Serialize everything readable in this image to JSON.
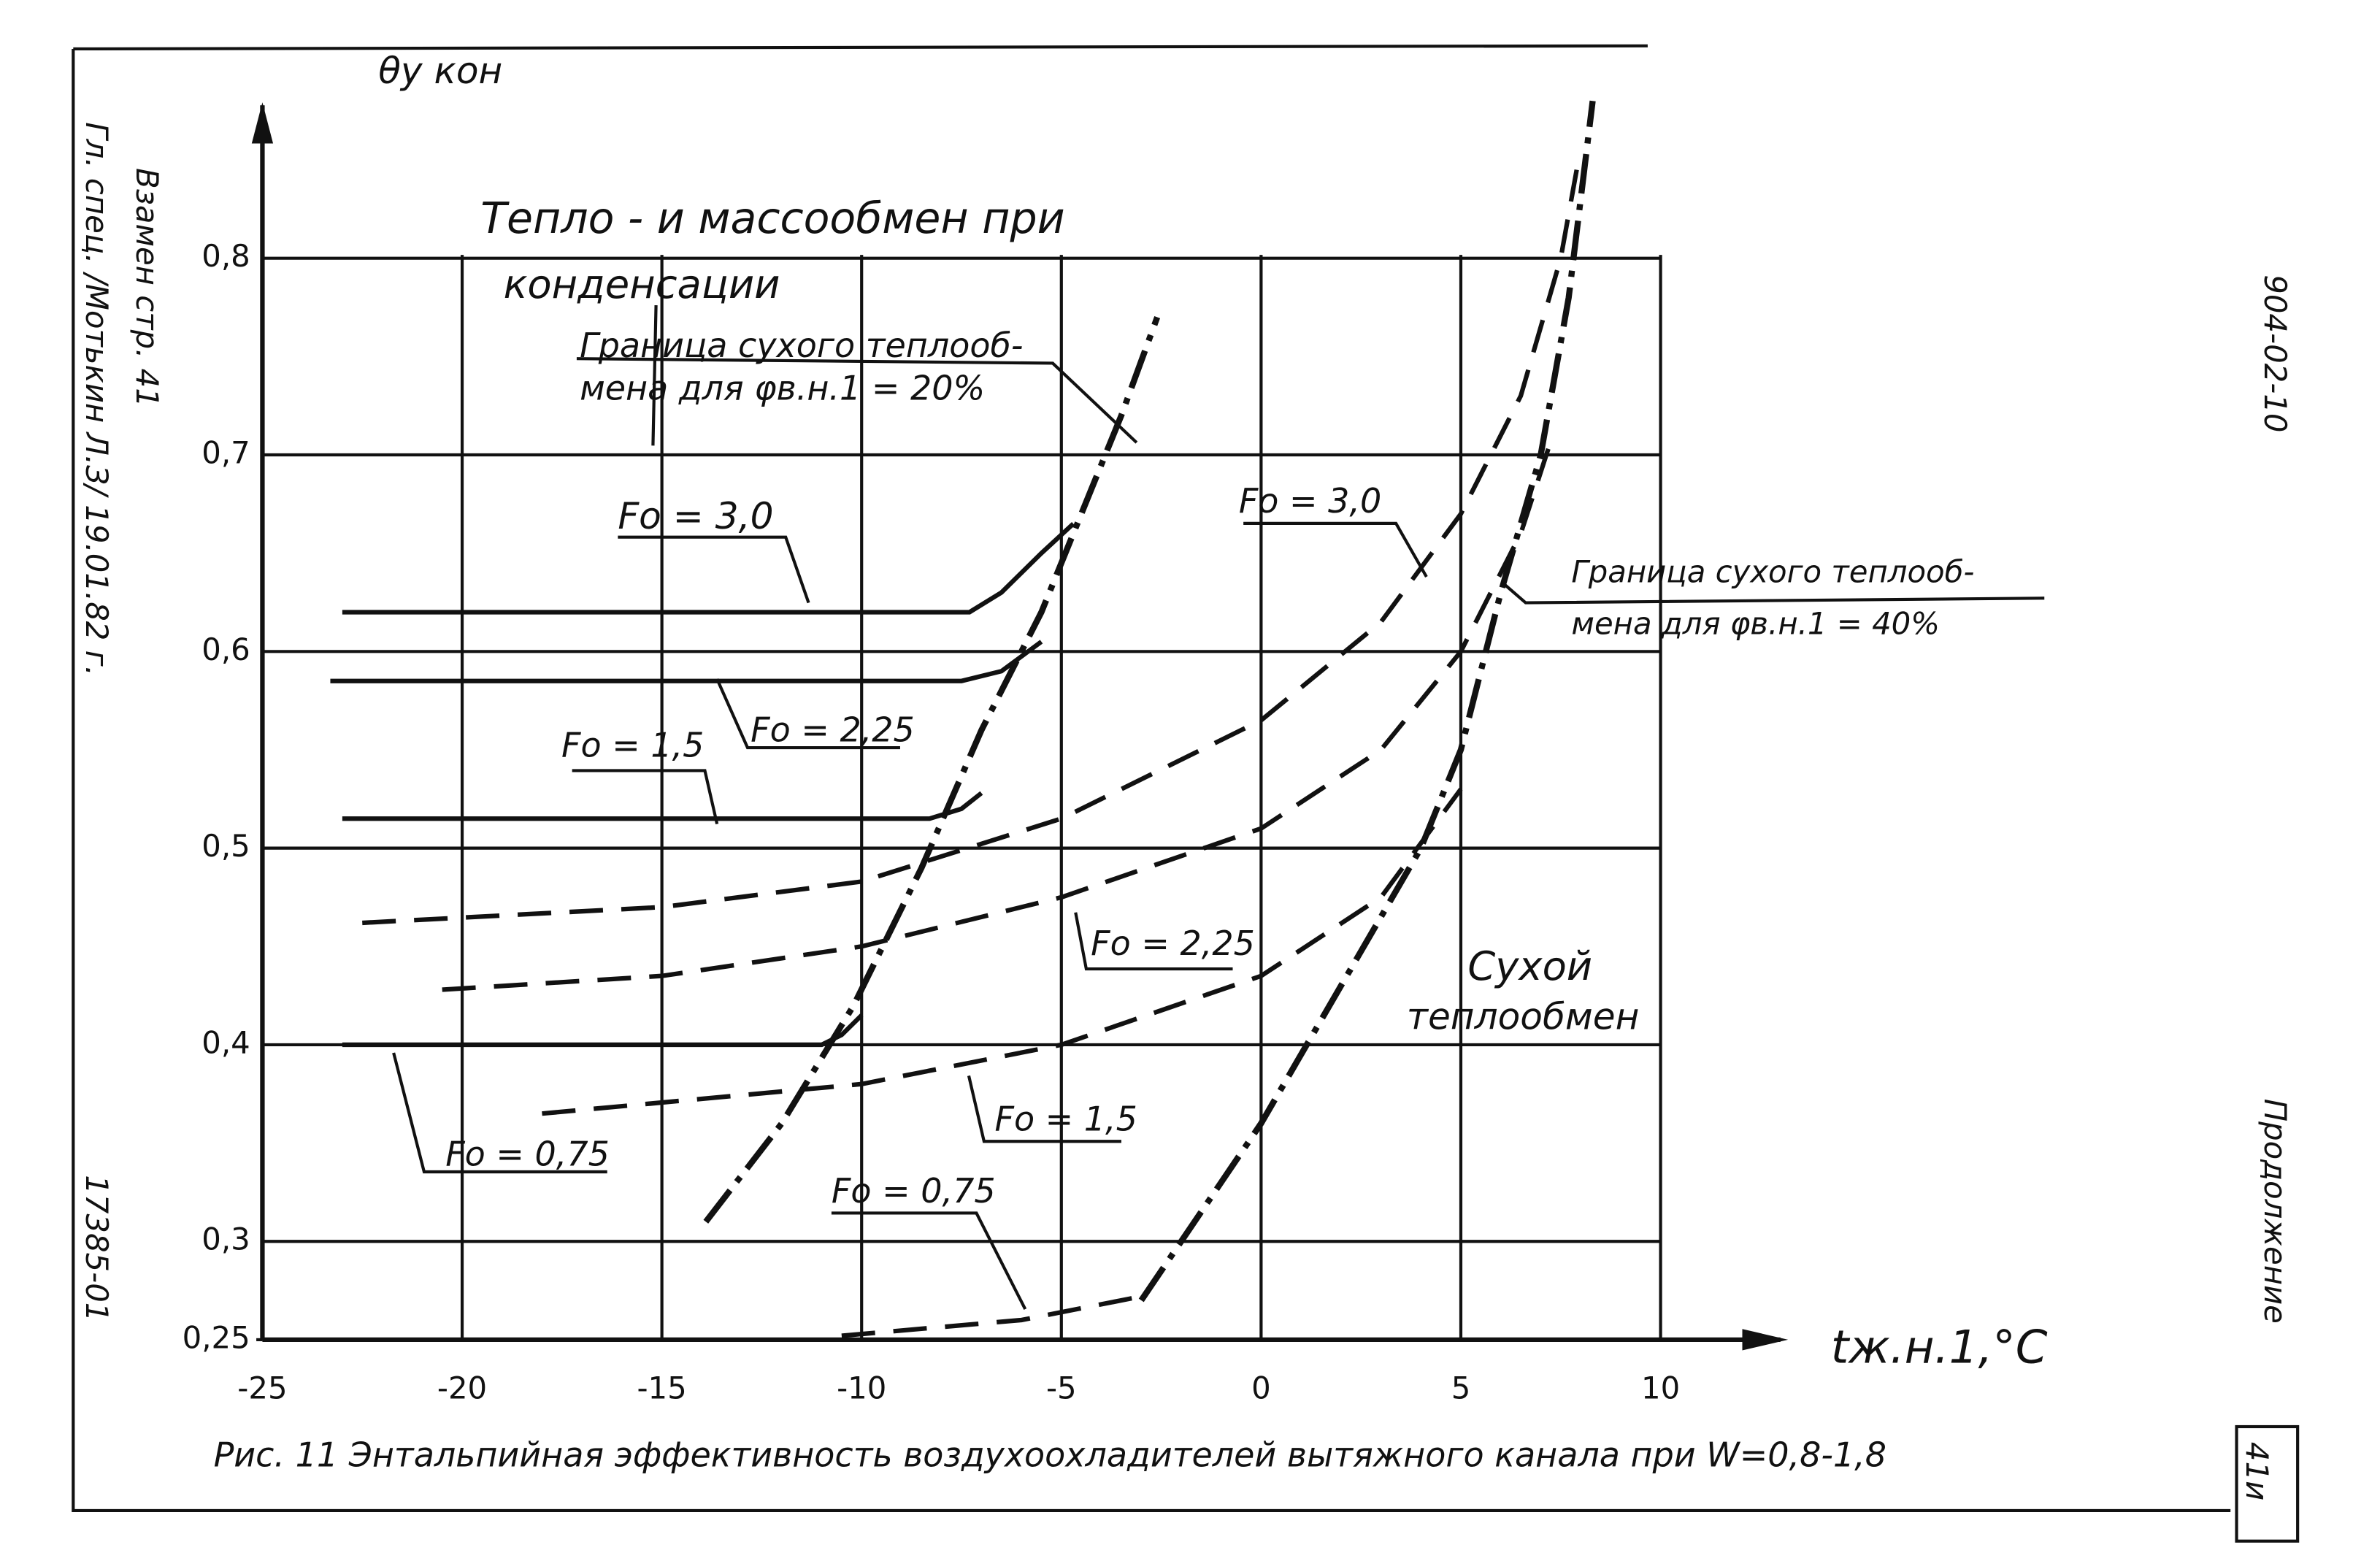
{
  "chart_data": {
    "type": "line",
    "y_label": "θу кон",
    "x_label": "tж.н.1,°C",
    "caption": "Рис. 11 Энтальпийная эффективность воздухоохладителей вытяжного канала при W=0,8-1,8",
    "xlim": [
      -25,
      13
    ],
    "ylim": [
      0.25,
      0.87
    ],
    "xticks": [
      -25,
      -20,
      -15,
      -10,
      -5,
      0,
      5,
      10
    ],
    "yticks": [
      {
        "value": 0.25,
        "label": "0,25"
      },
      {
        "value": 0.3,
        "label": "0,3"
      },
      {
        "value": 0.4,
        "label": "0,4"
      },
      {
        "value": 0.5,
        "label": "0,5"
      },
      {
        "value": 0.6,
        "label": "0,6"
      },
      {
        "value": 0.7,
        "label": "0,7"
      },
      {
        "value": 0.8,
        "label": "0,8"
      }
    ],
    "grid": true,
    "series": [
      {
        "style": "solid",
        "color": "#111111",
        "x": [
          -23,
          -7.3,
          -6.5,
          -5.5,
          -4.7
        ],
        "values": [
          0.62,
          0.62,
          0.63,
          0.65,
          0.665
        ]
      },
      {
        "style": "solid",
        "color": "#111111",
        "x": [
          -23.3,
          -7.5,
          -6.5,
          -5.5
        ],
        "values": [
          0.585,
          0.585,
          0.59,
          0.605
        ]
      },
      {
        "style": "solid",
        "color": "#111111",
        "x": [
          -23,
          -8.3,
          -7.5,
          -7
        ],
        "values": [
          0.515,
          0.515,
          0.52,
          0.528
        ]
      },
      {
        "style": "solid",
        "color": "#111111",
        "x": [
          -23,
          -11,
          -10.5,
          -10
        ],
        "values": [
          0.4,
          0.4,
          0.405,
          0.415
        ]
      },
      {
        "style": "dashdot",
        "color": "#111111",
        "x": [
          -13.9,
          -12,
          -10.2,
          -8.5,
          -7,
          -5.5,
          -4.5,
          -3.5,
          -2.6
        ],
        "values": [
          0.31,
          0.36,
          0.42,
          0.49,
          0.56,
          0.62,
          0.67,
          0.72,
          0.77
        ]
      },
      {
        "style": "dashdot",
        "color": "#111111",
        "x": [
          -3,
          -1,
          0,
          2,
          4,
          5,
          6,
          7,
          7.7,
          8.3
        ],
        "values": [
          0.27,
          0.33,
          0.36,
          0.43,
          0.5,
          0.55,
          0.63,
          0.7,
          0.78,
          0.88
        ]
      },
      {
        "style": "dashed",
        "color": "#111111",
        "x": [
          -22.5,
          -15,
          -10,
          -5,
          0,
          3,
          5,
          6.5,
          7.5,
          7.9
        ],
        "values": [
          0.462,
          0.47,
          0.483,
          0.515,
          0.565,
          0.615,
          0.67,
          0.73,
          0.8,
          0.845
        ]
      },
      {
        "style": "dashed",
        "color": "#111111",
        "x": [
          -20.5,
          -15,
          -10,
          -5,
          0,
          3,
          5,
          6.5,
          7.3
        ],
        "values": [
          0.428,
          0.435,
          0.45,
          0.475,
          0.51,
          0.55,
          0.6,
          0.66,
          0.71
        ]
      },
      {
        "style": "dashed",
        "color": "#111111",
        "x": [
          -18,
          -10,
          -5,
          0,
          3,
          5
        ],
        "values": [
          0.365,
          0.38,
          0.4,
          0.435,
          0.475,
          0.53
        ]
      },
      {
        "style": "dashed",
        "color": "#111111",
        "x": [
          -10.5,
          -6,
          -3
        ],
        "values": [
          0.252,
          0.26,
          0.272
        ]
      }
    ],
    "annotations": [
      "Тепло - и массообмен при",
      "конденсации",
      "Граница сухого теплооб-",
      "мена для φв.н.1 = 20%",
      "Fo = 3,0",
      "Fo = 2,25",
      "Fo = 1,5",
      "Fo = 0,75",
      "Fo = 3,0",
      "Fo = 2,25",
      "Fo = 1,5",
      "Fo = 0,75",
      "Граница сухого теплооб-",
      "мена для φв.н.1 = 40%",
      "Сухой",
      "теплообмен"
    ]
  },
  "margin": {
    "left_1": "Взамен стр. 41",
    "left_2": "Гл. спец. /Мотькин Л.З/ 19.01.82 г.",
    "left_3": "17385-01",
    "right_1": "904-02-10",
    "right_2": "Продолжение",
    "sheet": "41и"
  }
}
